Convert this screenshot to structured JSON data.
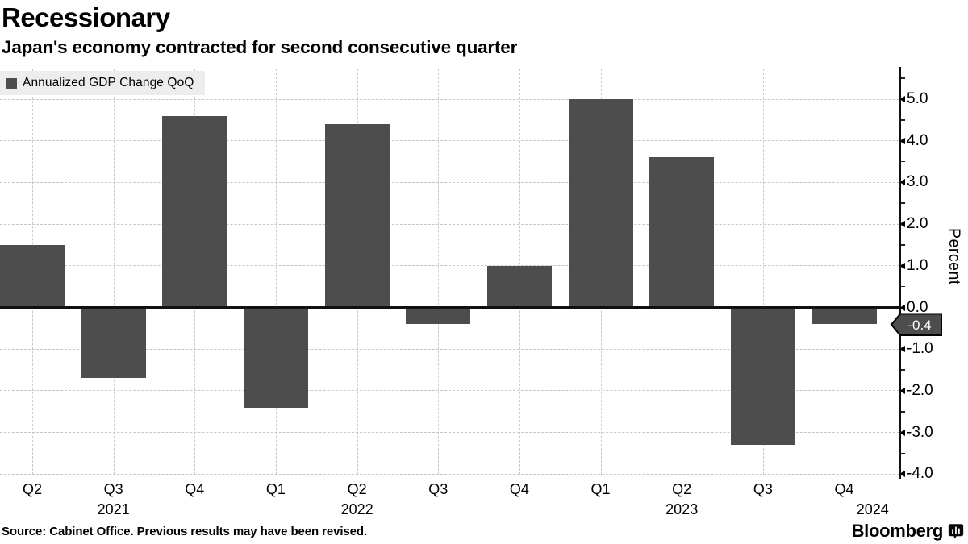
{
  "header": {
    "title": "Recessionary",
    "subtitle": "Japan's economy contracted for second consecutive quarter"
  },
  "chart_data": {
    "type": "bar",
    "series_name": "Annualized GDP Change QoQ",
    "categories": [
      "Q2",
      "Q3",
      "Q4",
      "Q1",
      "Q2",
      "Q3",
      "Q4",
      "Q1",
      "Q2",
      "Q3",
      "Q4"
    ],
    "values": [
      1.5,
      -1.7,
      4.6,
      -2.4,
      4.4,
      -0.4,
      1.0,
      5.0,
      3.6,
      -3.3,
      -0.4
    ],
    "year_labels": [
      {
        "text": "2021",
        "index": 1
      },
      {
        "text": "2022",
        "index": 4
      },
      {
        "text": "2023",
        "index": 8
      },
      {
        "text": "2024",
        "index": 10.35
      }
    ],
    "ylabel": "Percent",
    "ylim": [
      -4.0,
      5.5
    ],
    "y_major_ticks": [
      "5.0",
      "4.0",
      "3.0",
      "2.0",
      "1.0",
      "0.0",
      "-1.0",
      "-2.0",
      "-3.0",
      "-4.0"
    ],
    "grid": true,
    "legend_position": "top-left",
    "bar_color": "#4d4d4d",
    "last_value_tag": "-0.4"
  },
  "footer": {
    "source": "Source: Cabinet Office. Previous results may have been revised.",
    "brand": "Bloomberg",
    "brand_icon": "bloomberg-chart-bubble-icon"
  }
}
